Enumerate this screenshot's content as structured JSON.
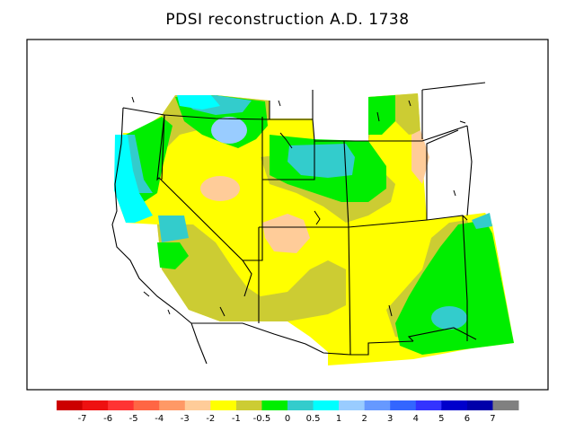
{
  "title": "PDSI reconstruction A.D. 1738",
  "legend": {
    "colors": [
      "#cc0000",
      "#ee1111",
      "#ff3333",
      "#ff6644",
      "#ff9966",
      "#ffcc99",
      "#ffff00",
      "#cccc33",
      "#00ee00",
      "#33cccc",
      "#00ffff",
      "#99ccff",
      "#6699ff",
      "#3366ff",
      "#3333ff",
      "#0000cc",
      "#0000aa",
      "#808080"
    ],
    "tick_labels": [
      "-7",
      "-6",
      "-5",
      "-4",
      "-3",
      "-2",
      "-1",
      "-0.5",
      "0",
      "0.5",
      "1",
      "2",
      "3",
      "4",
      "5",
      "6",
      "7"
    ]
  },
  "regions": [
    {
      "name": "region-yellow",
      "color": "#ffff00"
    },
    {
      "name": "region-olive",
      "color": "#cccc33"
    },
    {
      "name": "region-green",
      "color": "#00ee00"
    },
    {
      "name": "region-teal",
      "color": "#33cccc"
    },
    {
      "name": "region-cyan",
      "color": "#00ffff"
    },
    {
      "name": "region-lightblue",
      "color": "#99ccff"
    },
    {
      "name": "region-peach",
      "color": "#ffcc99"
    }
  ]
}
